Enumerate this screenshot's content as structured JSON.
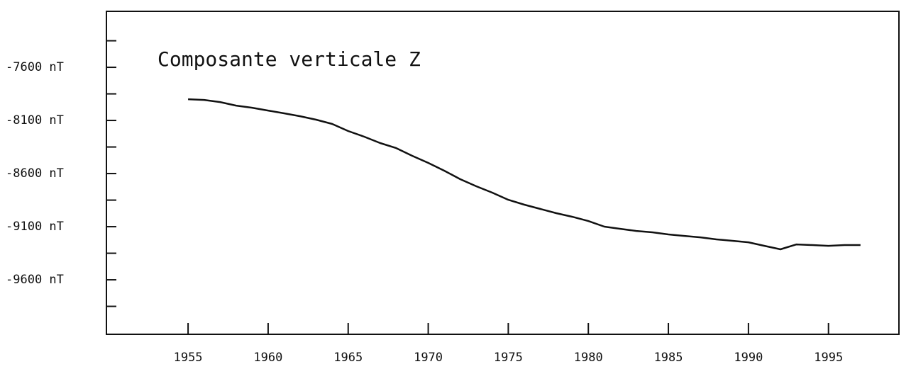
{
  "chart_data": {
    "type": "line",
    "annotation": "Composante verticale Z",
    "x": [
      1955,
      1956,
      1957,
      1958,
      1959,
      1960,
      1961,
      1962,
      1963,
      1964,
      1965,
      1966,
      1967,
      1968,
      1969,
      1970,
      1971,
      1972,
      1973,
      1974,
      1975,
      1976,
      1977,
      1978,
      1979,
      1980,
      1981,
      1982,
      1983,
      1984,
      1985,
      1986,
      1987,
      1988,
      1989,
      1990,
      1991,
      1992,
      1993,
      1994,
      1995,
      1996,
      1997
    ],
    "series": [
      {
        "color": "#111111",
        "values": [
          -7900,
          -7907,
          -7927,
          -7960,
          -7980,
          -8007,
          -8033,
          -8060,
          -8093,
          -8133,
          -8200,
          -8253,
          -8313,
          -8360,
          -8433,
          -8500,
          -8573,
          -8653,
          -8720,
          -8780,
          -8847,
          -8893,
          -8933,
          -8973,
          -9007,
          -9047,
          -9100,
          -9120,
          -9140,
          -9153,
          -9173,
          -9187,
          -9200,
          -9220,
          -9233,
          -9247,
          -9280,
          -9313,
          -9267,
          -9273,
          -9280,
          -9273,
          -9273
        ]
      }
    ],
    "xlim": [
      1949.9,
      1999.4
    ],
    "xticks": [
      1955,
      1960,
      1965,
      1970,
      1975,
      1980,
      1985,
      1990,
      1995
    ],
    "ylim": [
      -10113,
      -7073
    ],
    "yticks": [
      {
        "value": -7600,
        "label": "-7600 nT"
      },
      {
        "value": -8100,
        "label": "-8100 nT"
      },
      {
        "value": -8600,
        "label": "-8600 nT"
      },
      {
        "value": -9100,
        "label": "-9100 nT"
      },
      {
        "value": -9600,
        "label": "-9600 nT"
      }
    ],
    "minor_yticks": [
      -7350,
      -7850,
      -8350,
      -8850,
      -9350,
      -9850
    ]
  }
}
